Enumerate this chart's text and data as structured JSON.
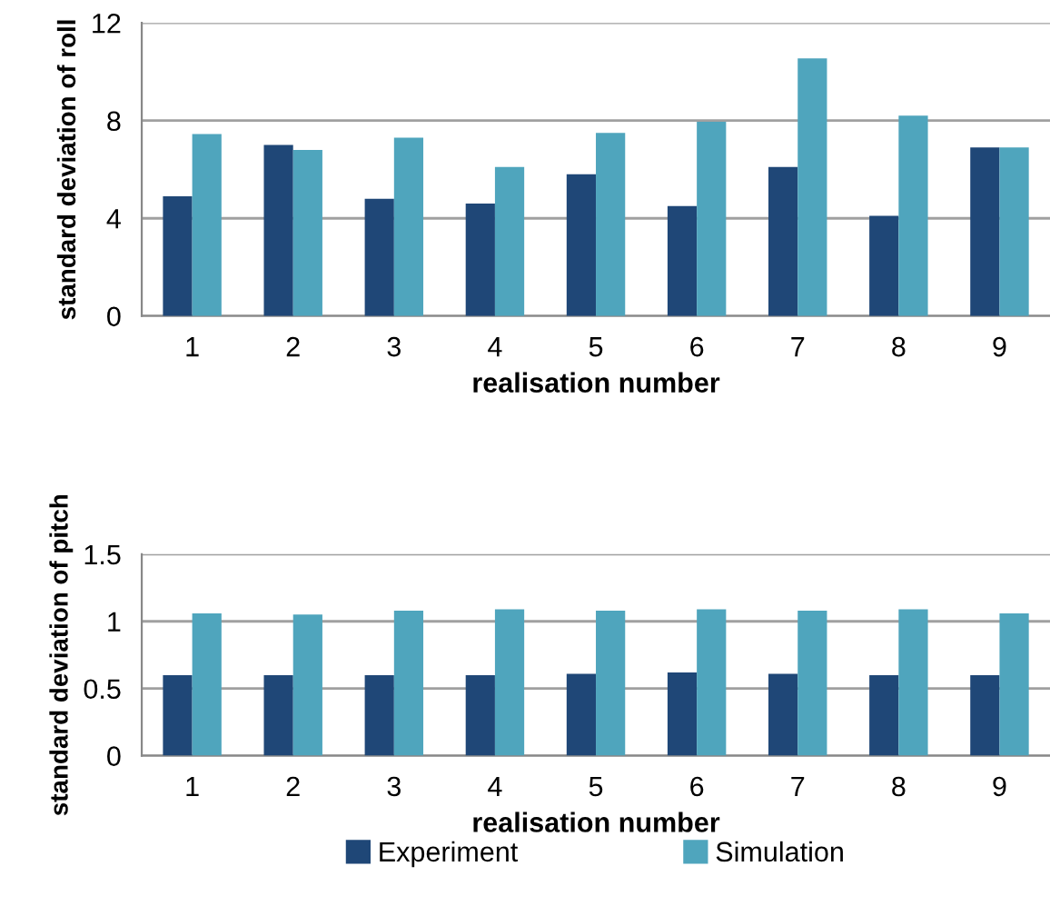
{
  "chart_data": [
    {
      "type": "bar",
      "ylabel": "standard deviation of roll",
      "xlabel": "realisation number",
      "categories": [
        "1",
        "2",
        "3",
        "4",
        "5",
        "6",
        "7",
        "8",
        "9"
      ],
      "ylim": [
        0,
        12
      ],
      "yticks": [
        0,
        4,
        8,
        12
      ],
      "grid": "y",
      "series": [
        {
          "color": "#1f4777",
          "values": [
            4.9,
            7.0,
            4.8,
            4.6,
            5.8,
            4.5,
            6.1,
            4.1,
            6.9
          ]
        },
        {
          "color": "#4fa5bd",
          "values": [
            7.45,
            6.8,
            7.3,
            6.1,
            7.5,
            7.95,
            10.55,
            8.2,
            6.9
          ]
        }
      ]
    },
    {
      "type": "bar",
      "ylabel": "standard deviation of pitch",
      "xlabel": "realisation number",
      "categories": [
        "1",
        "2",
        "3",
        "4",
        "5",
        "6",
        "7",
        "8",
        "9"
      ],
      "ylim": [
        0,
        1.5
      ],
      "yticks": [
        0,
        0.5,
        1,
        1.5
      ],
      "grid": "y",
      "legend": "bottom",
      "series": [
        {
          "name": "Experiment",
          "color": "#1f4777",
          "values": [
            0.6,
            0.6,
            0.6,
            0.6,
            0.61,
            0.62,
            0.61,
            0.6,
            0.6
          ]
        },
        {
          "name": "Simulation",
          "color": "#4fa5bd",
          "values": [
            1.06,
            1.05,
            1.08,
            1.09,
            1.08,
            1.09,
            1.08,
            1.09,
            1.06
          ]
        }
      ]
    }
  ]
}
